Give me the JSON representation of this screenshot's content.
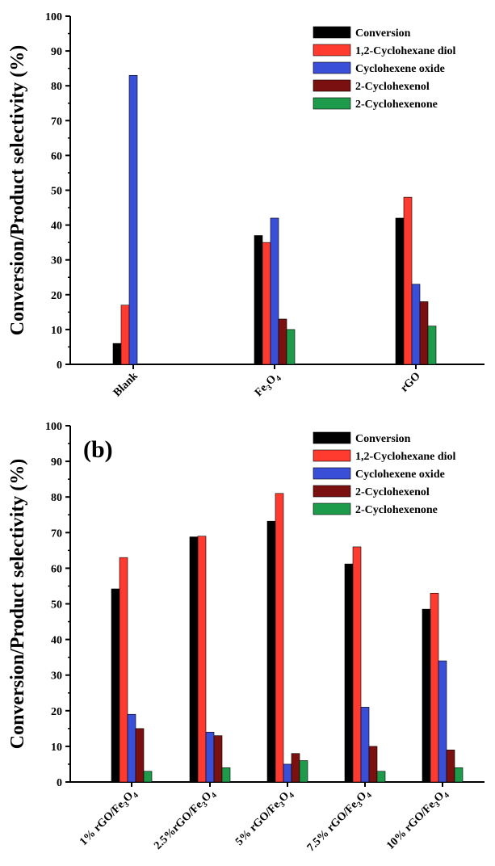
{
  "colors": {
    "Conversion": "#000000",
    "1,2-Cyclohexane diol": "#ff3b30",
    "Cyclohexene oxide": "#3a4fd8",
    "2-Cyclohexenol": "#7a1010",
    "2-Cyclohexenone": "#1e9b4a"
  },
  "chart_data": [
    {
      "type": "bar",
      "panel_label": "",
      "ylabel": "Conversion/Product selectivity (%)",
      "xlabel": "",
      "ylim": [
        0,
        100
      ],
      "yticks": [
        "0",
        "10",
        "20",
        "30",
        "40",
        "50",
        "60",
        "70",
        "80",
        "90",
        "100"
      ],
      "legend_position": "top-right",
      "categories": [
        "Blank",
        "Fe",
        "rGO"
      ],
      "category_labels": [
        {
          "main": "Blank",
          "sub1": "",
          "mid": "",
          "sub2": ""
        },
        {
          "main": "Fe",
          "sub1": "3",
          "mid": "O",
          "sub2": "4"
        },
        {
          "main": "rGO",
          "sub1": "",
          "mid": "",
          "sub2": ""
        }
      ],
      "series": [
        {
          "name": "Conversion",
          "values": [
            6,
            37,
            42
          ]
        },
        {
          "name": "1,2-Cyclohexane diol",
          "values": [
            17,
            35,
            48
          ]
        },
        {
          "name": "Cyclohexene oxide",
          "values": [
            83,
            42,
            23
          ]
        },
        {
          "name": "2-Cyclohexenol",
          "values": [
            0,
            13,
            18
          ]
        },
        {
          "name": "2-Cyclohexenone",
          "values": [
            0,
            10,
            11
          ]
        }
      ]
    },
    {
      "type": "bar",
      "panel_label": "(b)",
      "ylabel": "Conversion/Product selectivity (%)",
      "xlabel": "",
      "ylim": [
        0,
        100
      ],
      "yticks": [
        "0",
        "10",
        "20",
        "30",
        "40",
        "50",
        "60",
        "70",
        "80",
        "90",
        "100"
      ],
      "legend_position": "top-right",
      "categories": [
        "1% rGO/Fe3O4",
        "2.5%rGO/Fe3O4",
        "5% rGO/Fe3O4",
        "7.5% rGO/Fe3O4",
        "10% rGO/Fe3O4"
      ],
      "category_labels": [
        {
          "main": "1% rGO/Fe",
          "sub1": "3",
          "mid": "O",
          "sub2": "4"
        },
        {
          "main": "2.5%rGO/Fe",
          "sub1": "3",
          "mid": "O",
          "sub2": "4"
        },
        {
          "main": "5% rGO/Fe",
          "sub1": "3",
          "mid": "O",
          "sub2": "4"
        },
        {
          "main": "7.5% rGO/Fe",
          "sub1": "3",
          "mid": "O",
          "sub2": "4"
        },
        {
          "main": "10% rGO/Fe",
          "sub1": "3",
          "mid": "O",
          "sub2": "4"
        }
      ],
      "series": [
        {
          "name": "Conversion",
          "values": [
            54.2,
            68.8,
            73.2,
            61.2,
            48.5
          ]
        },
        {
          "name": "1,2-Cyclohexane diol",
          "values": [
            63,
            69,
            81,
            66,
            53
          ]
        },
        {
          "name": "Cyclohexene oxide",
          "values": [
            19,
            14,
            5,
            21,
            34
          ]
        },
        {
          "name": "2-Cyclohexenol",
          "values": [
            15,
            13,
            8,
            10,
            9
          ]
        },
        {
          "name": "2-Cyclohexenone",
          "values": [
            3,
            4,
            6,
            3,
            4
          ]
        }
      ]
    }
  ]
}
